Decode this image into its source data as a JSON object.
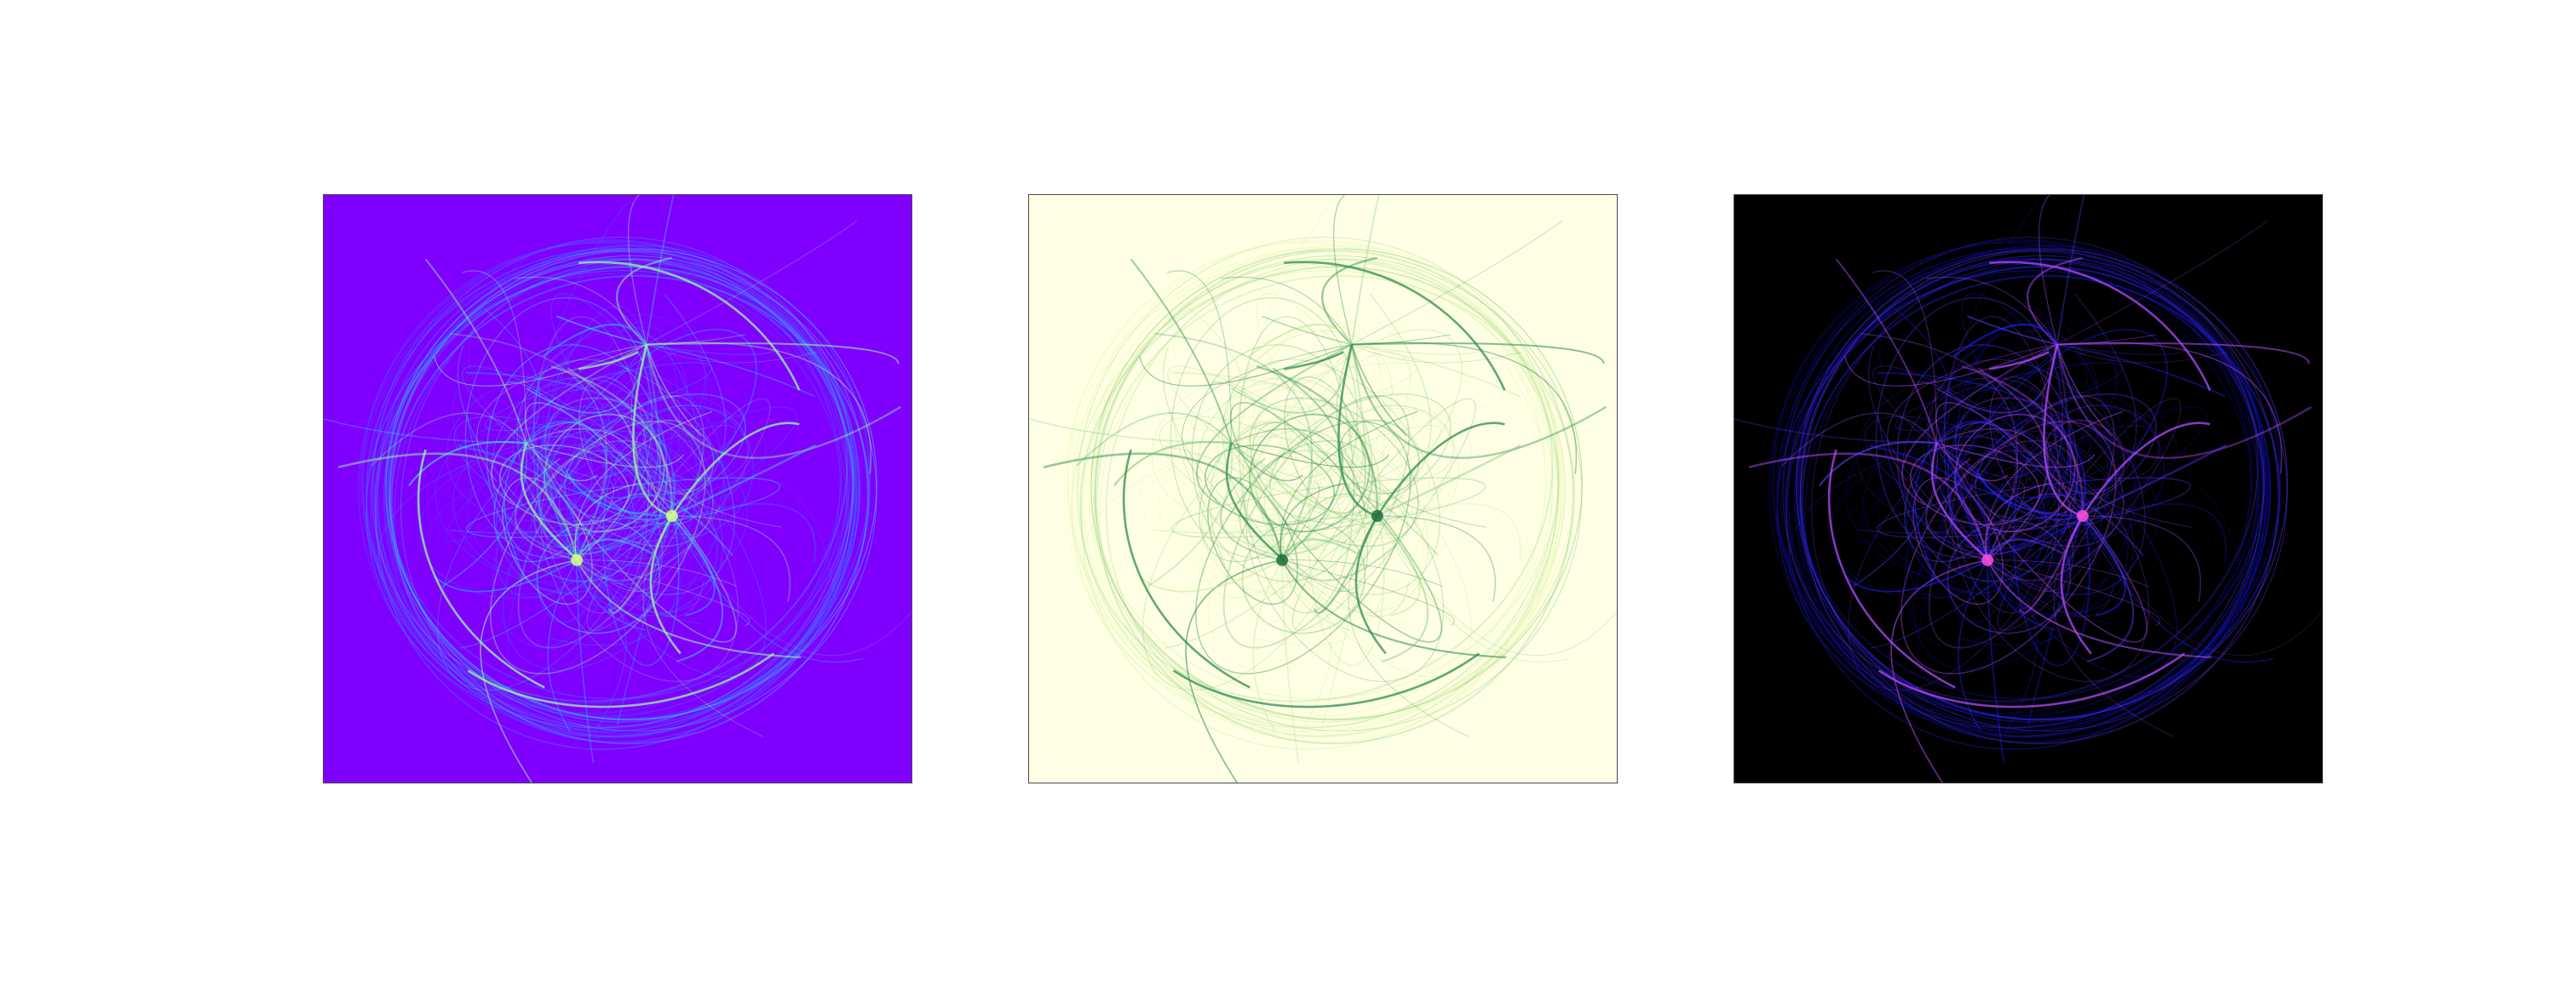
{
  "figure": {
    "panels": [
      {
        "id": "panel-1",
        "colormap": "rainbow",
        "background": "#7f00ff",
        "curve_colors": [
          "#3a6bff",
          "#2ea8ff",
          "#3fe2e6",
          "#9bff9a"
        ],
        "glow": "#d8ff8c"
      },
      {
        "id": "panel-2",
        "colormap": "YlGn",
        "background": "#ffffe5",
        "curve_colors": [
          "#f0f9b8",
          "#c5e8a0",
          "#7fc47a",
          "#2e8b4c"
        ],
        "glow": "#1f6f3c"
      },
      {
        "id": "panel-3",
        "colormap": "gnuplot2",
        "background": "#000000",
        "curve_colors": [
          "#0a0a9a",
          "#2020ff",
          "#5a3cff",
          "#b04cff"
        ],
        "glow": "#ff4fd8"
      }
    ]
  }
}
